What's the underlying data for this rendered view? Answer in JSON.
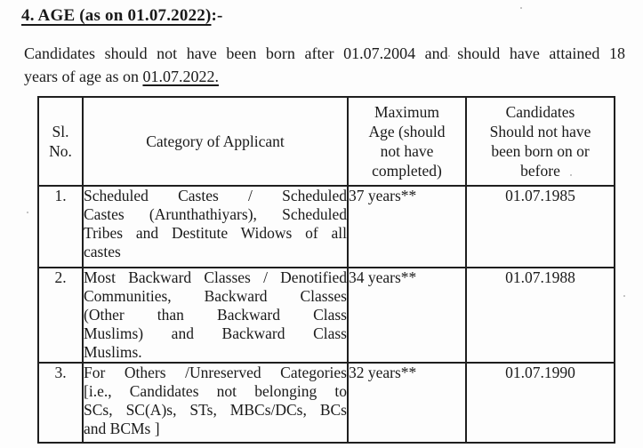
{
  "heading": {
    "underlined": "4. AGE (as on 01.07.2022)",
    "suffix": ":-"
  },
  "intro": {
    "line1": "Candidates should not have been born after 01.07.2004 and should have attained 18",
    "line2_text": "years of age as on ",
    "line2_underlined": "01.07.2022."
  },
  "table": {
    "header": {
      "sl_no_lines": [
        "Sl.",
        "No."
      ],
      "category": "Category of Applicant",
      "max_age_lines": [
        "Maximum",
        "Age (should",
        "not have",
        "completed)"
      ],
      "born_lines": [
        "Candidates",
        "Should not have",
        "been born on or",
        "before"
      ]
    },
    "rows": [
      {
        "sl": "1.",
        "category_lines": [
          "Scheduled Castes / Scheduled",
          "Castes (Arunthathiyars), Scheduled",
          "Tribes and Destitute Widows of all",
          "castes"
        ],
        "max_age": "37 years**",
        "born_on": "01.07.1985"
      },
      {
        "sl": "2.",
        "category_lines": [
          "Most Backward Classes / Denotified",
          "Communities, Backward Classes",
          "(Other than Backward Class",
          "Muslims) and Backward Class",
          "Muslims."
        ],
        "max_age": "34 years**",
        "born_on": "01.07.1988"
      },
      {
        "sl": "3.",
        "category_lines": [
          "For Others /Unreserved Categories",
          "[i.e., Candidates not belonging to",
          "SCs, SC(A)s, STs, MBCs/DCs, BCs",
          "and BCMs ]"
        ],
        "max_age": "32 years**",
        "born_on": "01.07.1990"
      }
    ]
  },
  "colors": {
    "text": "#1a1a1a",
    "border": "#1f1f1f",
    "background": "#fdfdfd"
  }
}
